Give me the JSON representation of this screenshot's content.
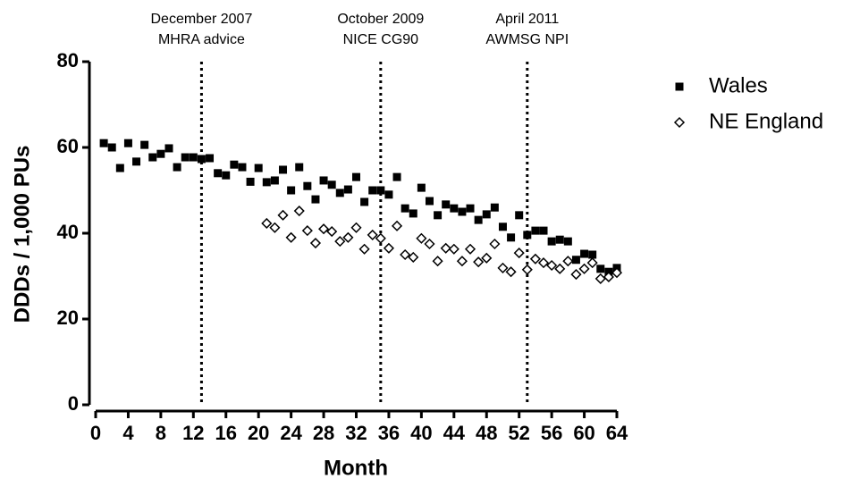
{
  "chart_data": {
    "type": "scatter",
    "x_label": "Month",
    "y_label": "DDDs / 1,000 PUs",
    "xlim": [
      0,
      64
    ],
    "xticks": [
      0,
      4,
      8,
      12,
      16,
      20,
      24,
      28,
      32,
      36,
      40,
      44,
      48,
      52,
      56,
      60,
      64
    ],
    "ylim": [
      0,
      80
    ],
    "yticks": [
      0,
      20,
      40,
      60,
      80
    ],
    "legend": "right",
    "annotations": [
      {
        "x": 13,
        "lines": [
          "December 2007",
          "MHRA advice"
        ]
      },
      {
        "x": 35,
        "lines": [
          "October 2009",
          "NICE CG90"
        ]
      },
      {
        "x": 53,
        "lines": [
          "April 2011",
          "AWMSG NPI"
        ]
      }
    ],
    "series": [
      {
        "name": "Wales",
        "color": "#000000",
        "marker": "square",
        "x": [
          1,
          2,
          3,
          4,
          5,
          6,
          7,
          8,
          9,
          10,
          11,
          12,
          13,
          14,
          15,
          16,
          17,
          18,
          19,
          20,
          21,
          22,
          23,
          24,
          25,
          26,
          27,
          28,
          29,
          30,
          31,
          32,
          33,
          34,
          35,
          36,
          37,
          38,
          39,
          40,
          41,
          42,
          43,
          44,
          45,
          46,
          47,
          48,
          49,
          50,
          51,
          52,
          53,
          54,
          55,
          56,
          57,
          58,
          59,
          60,
          61,
          62,
          63,
          64
        ],
        "values": [
          61,
          60,
          55.2,
          61,
          56.7,
          60.6,
          57.7,
          58.5,
          59.8,
          55.4,
          57.7,
          57.7,
          57.3,
          57.5,
          54,
          53.5,
          56,
          55.4,
          52,
          55.2,
          51.9,
          52.3,
          54.8,
          50,
          55.4,
          51,
          47.9,
          52.3,
          51.3,
          49.4,
          50.2,
          53.1,
          47.3,
          50,
          50,
          49,
          53.1,
          45.8,
          44.6,
          50.6,
          47.5,
          44.2,
          46.7,
          45.8,
          45,
          45.8,
          43.1,
          44.4,
          46,
          41.5,
          39,
          44.2,
          39.6,
          40.6,
          40.6,
          38.1,
          38.5,
          38.1,
          33.8,
          35.2,
          35,
          31.7,
          31,
          31.9
        ]
      },
      {
        "name": "NE England",
        "color": "#000000",
        "marker": "diamond",
        "x": [
          21,
          22,
          23,
          24,
          25,
          26,
          27,
          28,
          29,
          30,
          31,
          32,
          33,
          34,
          35,
          36,
          37,
          38,
          39,
          40,
          41,
          42,
          43,
          44,
          45,
          46,
          47,
          48,
          49,
          50,
          51,
          52,
          53,
          54,
          55,
          56,
          57,
          58,
          59,
          60,
          61,
          62,
          63,
          64
        ],
        "values": [
          42.3,
          41.3,
          44.2,
          39,
          45.2,
          40.6,
          37.7,
          41,
          40.4,
          38.1,
          39,
          41.3,
          36.3,
          39.6,
          38.8,
          36.5,
          41.7,
          35,
          34.4,
          38.8,
          37.5,
          33.5,
          36.5,
          36.3,
          33.5,
          36.3,
          33.3,
          34.2,
          37.5,
          31.9,
          31,
          35.4,
          31.5,
          34,
          33.1,
          32.5,
          31.7,
          33.5,
          30.4,
          31.7,
          33.1,
          29.4,
          29.8,
          30.8
        ]
      }
    ]
  }
}
